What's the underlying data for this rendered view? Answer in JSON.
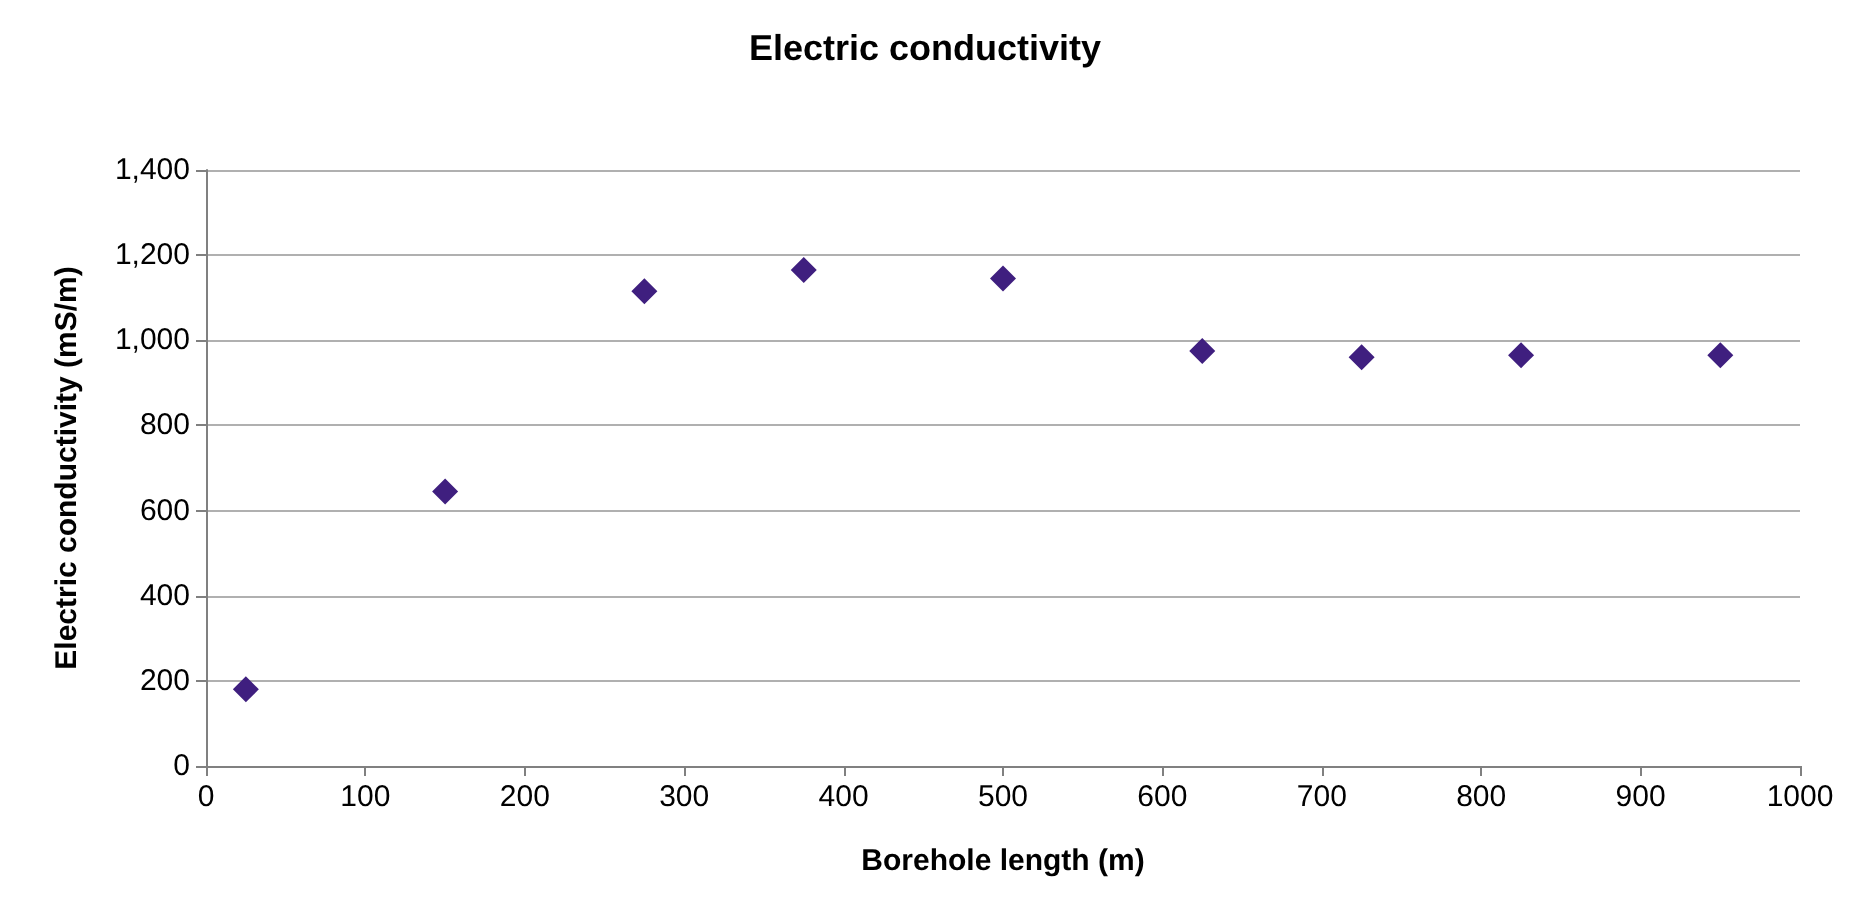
{
  "chart_data": {
    "type": "scatter",
    "title": "Electric conductivity",
    "xlabel": "Borehole length (m)",
    "ylabel": "Electric conductivity (mS/m)",
    "x": [
      25,
      150,
      275,
      375,
      500,
      625,
      725,
      825,
      950
    ],
    "series": [
      {
        "color": "#3f1f7f",
        "values": [
          180,
          645,
          1115,
          1165,
          1145,
          975,
          960,
          965,
          965
        ]
      }
    ],
    "xlim": [
      0,
      1000
    ],
    "xticks": [
      0,
      100,
      200,
      300,
      400,
      500,
      600,
      700,
      800,
      900,
      1000
    ],
    "ylim": [
      0,
      1400
    ],
    "yticks": [
      0,
      200,
      400,
      600,
      800,
      {
        "value": 1000,
        "label": "1,000"
      },
      {
        "value": 1200,
        "label": "1,200"
      },
      {
        "value": 1400,
        "label": "1,400"
      }
    ],
    "grid": "y",
    "marker": "diamond"
  }
}
